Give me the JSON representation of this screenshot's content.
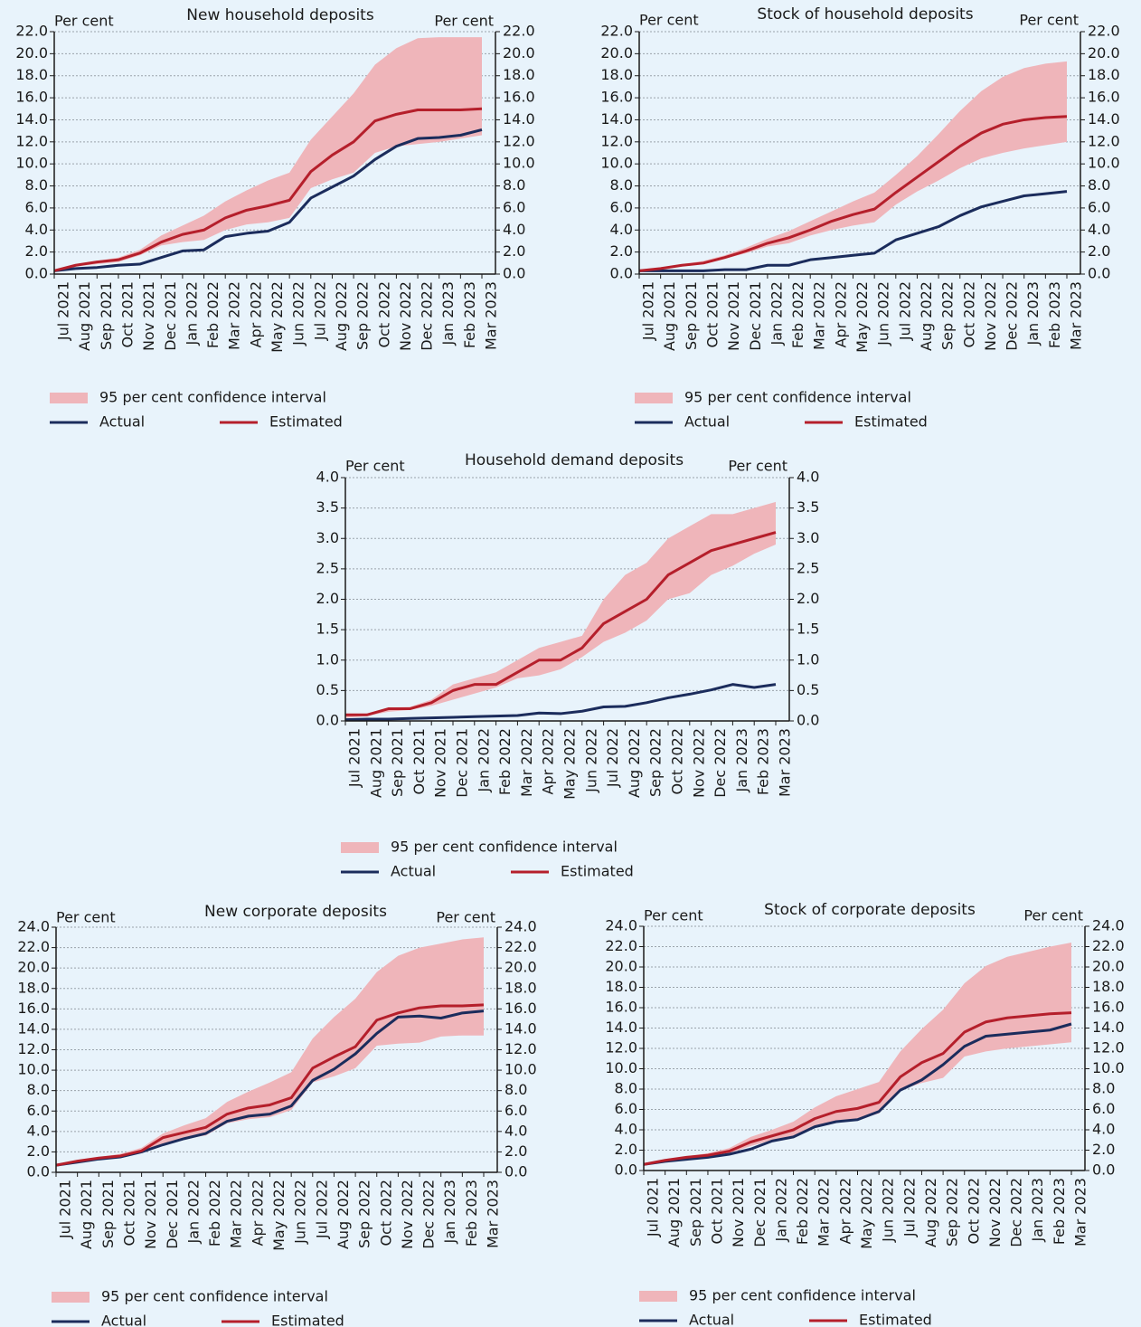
{
  "chart_data": [
    {
      "type": "line",
      "title": "New household deposits",
      "ylabel": "Per cent",
      "y2label": "Per cent",
      "categories": [
        "Jul 2021",
        "Aug 2021",
        "Sep 2021",
        "Oct 2021",
        "Nov 2021",
        "Dec 2021",
        "Jan 2022",
        "Feb 2022",
        "Mar 2022",
        "Apr 2022",
        "May 2022",
        "Jun 2022",
        "Jul 2022",
        "Aug 2022",
        "Sep 2022",
        "Oct 2022",
        "Nov 2022",
        "Dec 2022",
        "Jan 2023",
        "Feb 2023",
        "Mar 2023"
      ],
      "ylim": [
        0,
        22
      ],
      "yticks": [
        {
          "value": 0,
          "label": "0.0"
        },
        {
          "value": 2,
          "label": "2.0"
        },
        {
          "value": 4,
          "label": "4.0"
        },
        {
          "value": 6,
          "label": "6.0"
        },
        {
          "value": 8,
          "label": "8.0"
        },
        {
          "value": 10,
          "label": "10.0"
        },
        {
          "value": 12,
          "label": "12.0"
        },
        {
          "value": 14,
          "label": "14.0"
        },
        {
          "value": 16,
          "label": "16.0"
        },
        {
          "value": 18,
          "label": "18.0"
        },
        {
          "value": 20,
          "label": "20.0"
        },
        {
          "value": 22,
          "label": "22.0"
        }
      ],
      "grid": true,
      "series": [
        {
          "name": "95 per cent confidence interval",
          "type": "band",
          "color": "#efb5ba",
          "lower": [
            0.3,
            0.7,
            0.9,
            1.1,
            1.7,
            2.6,
            2.9,
            3.1,
            4.0,
            4.5,
            4.7,
            5.1,
            7.8,
            8.6,
            9.2,
            11.0,
            11.6,
            11.8,
            12.0,
            12.3,
            12.6
          ],
          "upper": [
            0.3,
            0.9,
            1.2,
            1.5,
            2.2,
            3.5,
            4.4,
            5.3,
            6.6,
            7.6,
            8.5,
            9.2,
            12.2,
            14.3,
            16.4,
            19.0,
            20.5,
            21.4,
            21.5,
            21.5,
            21.5
          ]
        },
        {
          "name": "Actual",
          "color": "#1b2c5c",
          "values": [
            0.3,
            0.5,
            0.6,
            0.8,
            0.9,
            1.5,
            2.1,
            2.2,
            3.4,
            3.7,
            3.9,
            4.7,
            6.9,
            7.9,
            8.9,
            10.4,
            11.6,
            12.3,
            12.4,
            12.6,
            13.1
          ]
        },
        {
          "name": "Estimated",
          "color": "#b51f2b",
          "values": [
            0.3,
            0.8,
            1.1,
            1.3,
            1.9,
            2.9,
            3.6,
            4.0,
            5.1,
            5.8,
            6.2,
            6.7,
            9.3,
            10.8,
            12.0,
            13.9,
            14.5,
            14.9,
            14.9,
            14.9,
            15.0
          ]
        }
      ]
    },
    {
      "type": "line",
      "title": "Stock of household deposits",
      "ylabel": "Per cent",
      "y2label": "Per cent",
      "categories": [
        "Jul 2021",
        "Aug 2021",
        "Sep 2021",
        "Oct 2021",
        "Nov 2021",
        "Dec 2021",
        "Jan 2022",
        "Feb 2022",
        "Mar 2022",
        "Apr 2022",
        "May 2022",
        "Jun 2022",
        "Jul 2022",
        "Aug 2022",
        "Sep 2022",
        "Oct 2022",
        "Nov 2022",
        "Dec 2022",
        "Jan 2023",
        "Feb 2023",
        "Mar 2023"
      ],
      "ylim": [
        0,
        22
      ],
      "yticks": [
        {
          "value": 0,
          "label": "0.0"
        },
        {
          "value": 2,
          "label": "2.0"
        },
        {
          "value": 4,
          "label": "4.0"
        },
        {
          "value": 6,
          "label": "6.0"
        },
        {
          "value": 8,
          "label": "8.0"
        },
        {
          "value": 10,
          "label": "10.0"
        },
        {
          "value": 12,
          "label": "12.0"
        },
        {
          "value": 14,
          "label": "14.0"
        },
        {
          "value": 16,
          "label": "16.0"
        },
        {
          "value": 18,
          "label": "18.0"
        },
        {
          "value": 20,
          "label": "20.0"
        },
        {
          "value": 22,
          "label": "22.0"
        }
      ],
      "grid": true,
      "series": [
        {
          "name": "95 per cent confidence interval",
          "type": "band",
          "color": "#efb5ba",
          "lower": [
            0.2,
            0.4,
            0.7,
            0.9,
            1.4,
            1.9,
            2.5,
            2.8,
            3.5,
            4.0,
            4.4,
            4.7,
            6.3,
            7.5,
            8.5,
            9.6,
            10.5,
            11.0,
            11.4,
            11.7,
            12.0
          ],
          "upper": [
            0.4,
            0.6,
            0.9,
            1.2,
            1.7,
            2.4,
            3.2,
            3.9,
            4.8,
            5.7,
            6.6,
            7.4,
            9.0,
            10.7,
            12.7,
            14.8,
            16.6,
            17.9,
            18.7,
            19.1,
            19.3
          ]
        },
        {
          "name": "Actual",
          "color": "#1b2c5c",
          "values": [
            0.3,
            0.3,
            0.3,
            0.3,
            0.4,
            0.4,
            0.8,
            0.8,
            1.3,
            1.5,
            1.7,
            1.9,
            3.1,
            3.7,
            4.3,
            5.3,
            6.1,
            6.6,
            7.1,
            7.3,
            7.5
          ]
        },
        {
          "name": "Estimated",
          "color": "#b51f2b",
          "values": [
            0.3,
            0.5,
            0.8,
            1.0,
            1.5,
            2.1,
            2.8,
            3.3,
            4.0,
            4.8,
            5.4,
            5.9,
            7.4,
            8.8,
            10.2,
            11.6,
            12.8,
            13.6,
            14.0,
            14.2,
            14.3
          ]
        }
      ]
    },
    {
      "type": "line",
      "title": "Household demand deposits",
      "ylabel": "Per cent",
      "y2label": "Per cent",
      "categories": [
        "Jul 2021",
        "Aug 2021",
        "Sep 2021",
        "Oct 2021",
        "Nov 2021",
        "Dec 2021",
        "Jan 2022",
        "Feb 2022",
        "Mar 2022",
        "Apr 2022",
        "May 2022",
        "Jun 2022",
        "Jul 2022",
        "Aug 2022",
        "Sep 2022",
        "Oct 2022",
        "Nov 2022",
        "Dec 2022",
        "Jan 2023",
        "Feb 2023",
        "Mar 2023"
      ],
      "ylim": [
        0,
        4
      ],
      "yticks": [
        {
          "value": 0,
          "label": "0.0"
        },
        {
          "value": 0.5,
          "label": "0.5"
        },
        {
          "value": 1,
          "label": "1.0"
        },
        {
          "value": 1.5,
          "label": "1.5"
        },
        {
          "value": 2,
          "label": "2.0"
        },
        {
          "value": 2.5,
          "label": "2.5"
        },
        {
          "value": 3,
          "label": "3.0"
        },
        {
          "value": 3.5,
          "label": "3.5"
        },
        {
          "value": 4,
          "label": "4.0"
        }
      ],
      "grid": true,
      "series": [
        {
          "name": "95 per cent confidence interval",
          "type": "band",
          "color": "#efb5ba",
          "lower": [
            0.05,
            0.08,
            0.15,
            0.18,
            0.25,
            0.35,
            0.45,
            0.55,
            0.7,
            0.75,
            0.85,
            1.05,
            1.3,
            1.45,
            1.65,
            2.0,
            2.1,
            2.4,
            2.55,
            2.75,
            2.9
          ],
          "upper": [
            0.12,
            0.12,
            0.22,
            0.23,
            0.35,
            0.6,
            0.7,
            0.8,
            1.0,
            1.2,
            1.3,
            1.4,
            2.0,
            2.4,
            2.6,
            3.0,
            3.2,
            3.4,
            3.4,
            3.5,
            3.6
          ]
        },
        {
          "name": "Actual",
          "color": "#1b2c5c",
          "values": [
            0.02,
            0.03,
            0.03,
            0.04,
            0.05,
            0.06,
            0.07,
            0.08,
            0.09,
            0.13,
            0.12,
            0.16,
            0.23,
            0.24,
            0.3,
            0.38,
            0.44,
            0.51,
            0.6,
            0.55,
            0.6
          ]
        },
        {
          "name": "Estimated",
          "color": "#b51f2b",
          "values": [
            0.1,
            0.1,
            0.2,
            0.2,
            0.3,
            0.5,
            0.6,
            0.6,
            0.8,
            1.0,
            1.0,
            1.2,
            1.6,
            1.8,
            2.0,
            2.4,
            2.6,
            2.8,
            2.9,
            3.0,
            3.1
          ]
        }
      ]
    },
    {
      "type": "line",
      "title": "New corporate deposits",
      "ylabel": "Per cent",
      "y2label": "Per cent",
      "categories": [
        "Jul 2021",
        "Aug 2021",
        "Sep 2021",
        "Oct 2021",
        "Nov 2021",
        "Dec 2021",
        "Jan 2022",
        "Feb 2022",
        "Mar 2022",
        "Apr 2022",
        "May 2022",
        "Jun 2022",
        "Jul 2022",
        "Aug 2022",
        "Sep 2022",
        "Oct 2022",
        "Nov 2022",
        "Dec 2022",
        "Jan 2023",
        "Feb 2023",
        "Mar 2023"
      ],
      "ylim": [
        0,
        24
      ],
      "yticks": [
        {
          "value": 0,
          "label": "0.0"
        },
        {
          "value": 2,
          "label": "2.0"
        },
        {
          "value": 4,
          "label": "4.0"
        },
        {
          "value": 6,
          "label": "6.0"
        },
        {
          "value": 8,
          "label": "8.0"
        },
        {
          "value": 10,
          "label": "10.0"
        },
        {
          "value": 12,
          "label": "12.0"
        },
        {
          "value": 14,
          "label": "14.0"
        },
        {
          "value": 16,
          "label": "16.0"
        },
        {
          "value": 18,
          "label": "18.0"
        },
        {
          "value": 20,
          "label": "20.0"
        },
        {
          "value": 22,
          "label": "22.0"
        },
        {
          "value": 24,
          "label": "24.0"
        }
      ],
      "grid": true,
      "series": [
        {
          "name": "95 per cent confidence interval",
          "type": "band",
          "color": "#efb5ba",
          "lower": [
            0.6,
            0.9,
            1.2,
            1.4,
            1.9,
            2.8,
            3.3,
            3.6,
            4.8,
            5.2,
            5.4,
            6.1,
            8.8,
            9.4,
            10.2,
            12.4,
            12.6,
            12.7,
            13.3,
            13.4,
            13.4
          ],
          "upper": [
            0.8,
            1.2,
            1.5,
            1.8,
            2.4,
            3.8,
            4.6,
            5.3,
            6.9,
            7.9,
            8.8,
            9.8,
            13.1,
            15.2,
            17.0,
            19.6,
            21.2,
            22.0,
            22.4,
            22.8,
            23.0
          ]
        },
        {
          "name": "Actual",
          "color": "#1b2c5c",
          "values": [
            0.7,
            1.0,
            1.3,
            1.5,
            2.0,
            2.7,
            3.3,
            3.8,
            5.0,
            5.5,
            5.7,
            6.5,
            9.0,
            10.1,
            11.6,
            13.6,
            15.2,
            15.3,
            15.1,
            15.6,
            15.8
          ]
        },
        {
          "name": "Estimated",
          "color": "#b51f2b",
          "values": [
            0.7,
            1.1,
            1.4,
            1.6,
            2.1,
            3.4,
            3.9,
            4.4,
            5.7,
            6.3,
            6.6,
            7.3,
            10.2,
            11.3,
            12.3,
            14.9,
            15.6,
            16.1,
            16.3,
            16.3,
            16.4
          ]
        }
      ]
    },
    {
      "type": "line",
      "title": "Stock of corporate deposits",
      "ylabel": "Per cent",
      "y2label": "Per cent",
      "categories": [
        "Jul 2021",
        "Aug 2021",
        "Sep 2021",
        "Oct 2021",
        "Nov 2021",
        "Dec 2021",
        "Jan 2022",
        "Feb 2022",
        "Mar 2022",
        "Apr 2022",
        "May 2022",
        "Jun 2022",
        "Jul 2022",
        "Aug 2022",
        "Sep 2022",
        "Oct 2022",
        "Nov 2022",
        "Dec 2022",
        "Jan 2023",
        "Feb 2023",
        "Mar 2023"
      ],
      "ylim": [
        0,
        24
      ],
      "yticks": [
        {
          "value": 0,
          "label": "0.0"
        },
        {
          "value": 2,
          "label": "2.0"
        },
        {
          "value": 4,
          "label": "4.0"
        },
        {
          "value": 6,
          "label": "6.0"
        },
        {
          "value": 8,
          "label": "8.0"
        },
        {
          "value": 10,
          "label": "10.0"
        },
        {
          "value": 12,
          "label": "12.0"
        },
        {
          "value": 14,
          "label": "14.0"
        },
        {
          "value": 16,
          "label": "16.0"
        },
        {
          "value": 18,
          "label": "18.0"
        },
        {
          "value": 20,
          "label": "20.0"
        },
        {
          "value": 22,
          "label": "22.0"
        },
        {
          "value": 24,
          "label": "24.0"
        }
      ],
      "grid": true,
      "series": [
        {
          "name": "95 per cent confidence interval",
          "type": "band",
          "color": "#efb5ba",
          "lower": [
            0.5,
            0.9,
            1.1,
            1.3,
            1.7,
            2.4,
            3.0,
            3.3,
            4.4,
            4.9,
            5.0,
            5.6,
            7.9,
            8.6,
            9.1,
            11.2,
            11.7,
            12.0,
            12.2,
            12.4,
            12.6
          ],
          "upper": [
            0.7,
            1.1,
            1.4,
            1.7,
            2.2,
            3.3,
            4.0,
            4.8,
            6.2,
            7.3,
            8.0,
            8.7,
            11.7,
            13.9,
            15.8,
            18.4,
            20.1,
            21.0,
            21.5,
            22.0,
            22.4
          ]
        },
        {
          "name": "Actual",
          "color": "#1b2c5c",
          "values": [
            0.6,
            0.9,
            1.1,
            1.3,
            1.6,
            2.1,
            2.9,
            3.3,
            4.3,
            4.8,
            5.0,
            5.8,
            7.9,
            8.9,
            10.4,
            12.2,
            13.2,
            13.4,
            13.6,
            13.8,
            14.4
          ]
        },
        {
          "name": "Estimated",
          "color": "#b51f2b",
          "values": [
            0.6,
            1.0,
            1.3,
            1.5,
            1.9,
            2.8,
            3.4,
            4.0,
            5.1,
            5.8,
            6.1,
            6.7,
            9.2,
            10.6,
            11.5,
            13.6,
            14.6,
            15.0,
            15.2,
            15.4,
            15.5
          ]
        }
      ]
    }
  ]
}
